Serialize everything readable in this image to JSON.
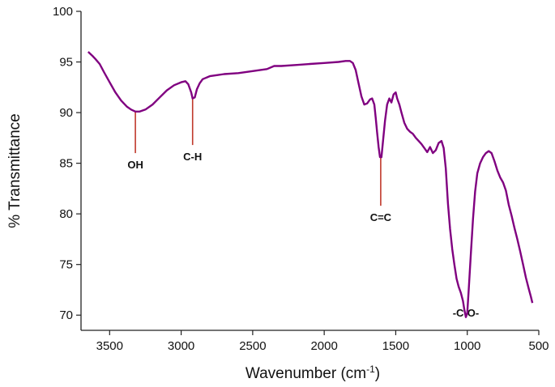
{
  "chart_data": {
    "type": "line",
    "title": "",
    "xlabel": "Wavenumber (cm",
    "xlabel_sup": "-1",
    "xlabel_suffix": ")",
    "ylabel": "% Transmittance",
    "xlim": [
      3700,
      500
    ],
    "ylim": [
      68.5,
      100
    ],
    "x_reversed": true,
    "grid": false,
    "legend": "none",
    "x_ticks": [
      3500,
      3000,
      2500,
      2000,
      1500,
      1000,
      500
    ],
    "y_ticks": [
      70,
      75,
      80,
      85,
      90,
      95,
      100
    ],
    "line_color": "#800080",
    "annotation_color": "#c0392b",
    "series": [
      {
        "points": [
          [
            3650,
            96.0
          ],
          [
            3620,
            95.6
          ],
          [
            3600,
            95.3
          ],
          [
            3570,
            94.8
          ],
          [
            3540,
            94.0
          ],
          [
            3500,
            93.0
          ],
          [
            3460,
            92.0
          ],
          [
            3420,
            91.2
          ],
          [
            3380,
            90.6
          ],
          [
            3350,
            90.3
          ],
          [
            3320,
            90.1
          ],
          [
            3290,
            90.1
          ],
          [
            3250,
            90.3
          ],
          [
            3200,
            90.8
          ],
          [
            3150,
            91.5
          ],
          [
            3100,
            92.2
          ],
          [
            3050,
            92.7
          ],
          [
            3000,
            93.0
          ],
          [
            2970,
            93.1
          ],
          [
            2950,
            92.8
          ],
          [
            2930,
            92.0
          ],
          [
            2920,
            91.4
          ],
          [
            2905,
            91.5
          ],
          [
            2890,
            92.3
          ],
          [
            2870,
            92.9
          ],
          [
            2850,
            93.3
          ],
          [
            2800,
            93.6
          ],
          [
            2750,
            93.7
          ],
          [
            2700,
            93.8
          ],
          [
            2600,
            93.9
          ],
          [
            2500,
            94.1
          ],
          [
            2400,
            94.3
          ],
          [
            2350,
            94.6
          ],
          [
            2300,
            94.6
          ],
          [
            2200,
            94.7
          ],
          [
            2100,
            94.8
          ],
          [
            2000,
            94.9
          ],
          [
            1900,
            95.0
          ],
          [
            1850,
            95.1
          ],
          [
            1820,
            95.1
          ],
          [
            1800,
            94.9
          ],
          [
            1780,
            94.2
          ],
          [
            1760,
            92.9
          ],
          [
            1740,
            91.6
          ],
          [
            1720,
            90.8
          ],
          [
            1700,
            90.9
          ],
          [
            1680,
            91.3
          ],
          [
            1665,
            91.4
          ],
          [
            1650,
            90.8
          ],
          [
            1640,
            89.5
          ],
          [
            1630,
            88.0
          ],
          [
            1620,
            86.6
          ],
          [
            1610,
            85.6
          ],
          [
            1600,
            85.6
          ],
          [
            1590,
            87.0
          ],
          [
            1575,
            89.2
          ],
          [
            1560,
            90.8
          ],
          [
            1545,
            91.4
          ],
          [
            1530,
            91.0
          ],
          [
            1515,
            91.8
          ],
          [
            1500,
            92.0
          ],
          [
            1490,
            91.4
          ],
          [
            1475,
            90.8
          ],
          [
            1460,
            90.0
          ],
          [
            1440,
            89.0
          ],
          [
            1420,
            88.4
          ],
          [
            1400,
            88.1
          ],
          [
            1380,
            87.9
          ],
          [
            1360,
            87.5
          ],
          [
            1340,
            87.2
          ],
          [
            1320,
            86.9
          ],
          [
            1300,
            86.5
          ],
          [
            1280,
            86.1
          ],
          [
            1260,
            86.6
          ],
          [
            1240,
            86.0
          ],
          [
            1220,
            86.3
          ],
          [
            1200,
            87.0
          ],
          [
            1180,
            87.2
          ],
          [
            1165,
            86.5
          ],
          [
            1150,
            84.5
          ],
          [
            1135,
            81.0
          ],
          [
            1120,
            78.5
          ],
          [
            1105,
            76.5
          ],
          [
            1090,
            75.0
          ],
          [
            1075,
            73.6
          ],
          [
            1060,
            72.8
          ],
          [
            1045,
            72.2
          ],
          [
            1030,
            71.4
          ],
          [
            1020,
            70.5
          ],
          [
            1010,
            69.8
          ],
          [
            1000,
            70.2
          ],
          [
            990,
            72.5
          ],
          [
            975,
            76.0
          ],
          [
            960,
            79.5
          ],
          [
            945,
            82.2
          ],
          [
            930,
            84.0
          ],
          [
            910,
            85.0
          ],
          [
            890,
            85.6
          ],
          [
            870,
            86.0
          ],
          [
            850,
            86.2
          ],
          [
            830,
            86.0
          ],
          [
            810,
            85.2
          ],
          [
            790,
            84.3
          ],
          [
            770,
            83.6
          ],
          [
            750,
            83.1
          ],
          [
            730,
            82.3
          ],
          [
            710,
            80.9
          ],
          [
            690,
            79.8
          ],
          [
            670,
            78.6
          ],
          [
            650,
            77.5
          ],
          [
            630,
            76.3
          ],
          [
            610,
            75.0
          ],
          [
            590,
            73.7
          ],
          [
            570,
            72.6
          ],
          [
            555,
            71.8
          ],
          [
            545,
            71.2
          ]
        ]
      }
    ],
    "annotations": [
      {
        "label": "OH",
        "x": 3320,
        "y_top": 90.1,
        "y_bottom": 86.0
      },
      {
        "label": "C-H",
        "x": 2920,
        "y_top": 91.4,
        "y_bottom": 86.8
      },
      {
        "label": "C=C",
        "x": 1605,
        "y_top": 85.6,
        "y_bottom": 80.8
      },
      {
        "label": "-C-O-",
        "x": 1010,
        "y_top": null,
        "y_bottom": null
      }
    ]
  }
}
